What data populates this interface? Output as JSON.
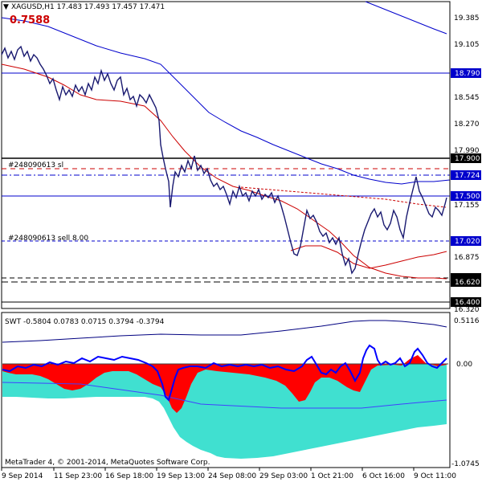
{
  "header": {
    "symbol_line": "XAGUSD,H1  17.483 17.493 17.457 17.471",
    "value_label": "0.7588"
  },
  "price_scale": {
    "ticks": [
      "19.385",
      "19.105",
      "18.545",
      "18.270",
      "17.990",
      "17.155",
      "16.875",
      "16.320"
    ],
    "badges": [
      {
        "label": "18.790",
        "color": "#0000cc"
      },
      {
        "label": "17.900",
        "color": "#000000"
      },
      {
        "label": "17.724",
        "color": "#0000cc"
      },
      {
        "label": "17.500",
        "color": "#0000cc"
      },
      {
        "label": "17.020",
        "color": "#0000cc"
      },
      {
        "label": "16.620",
        "color": "#000000"
      },
      {
        "label": "16.400",
        "color": "#000000"
      }
    ]
  },
  "orders": {
    "sl_label": "#248090613 sl",
    "sell_label": "#248090613 sell 8.00"
  },
  "indicator": {
    "title": "SWT -0.5804 0.0783 0.0715 0.3794 -0.3794",
    "ticks": [
      "0.5116",
      "0.00",
      "-1.0745"
    ],
    "copyright": "MetaTrader 4, © 2001-2014, MetaQuotes Software Corp."
  },
  "time_axis": {
    "labels": [
      "9 Sep 2014",
      "11 Sep 23:00",
      "16 Sep 18:00",
      "19 Sep 13:00",
      "24 Sep 08:00",
      "29 Sep 03:00",
      "1 Oct 21:00",
      "6 Oct 16:00",
      "9 Oct 11:00"
    ]
  },
  "colors": {
    "price_line": "#191970",
    "ma_blue": "#0000cc",
    "ma_red": "#cc0000",
    "swt_red": "#ff0000",
    "swt_cyan": "#40e0d0",
    "swt_blue": "#0000ff",
    "grid_black": "#000000"
  }
}
